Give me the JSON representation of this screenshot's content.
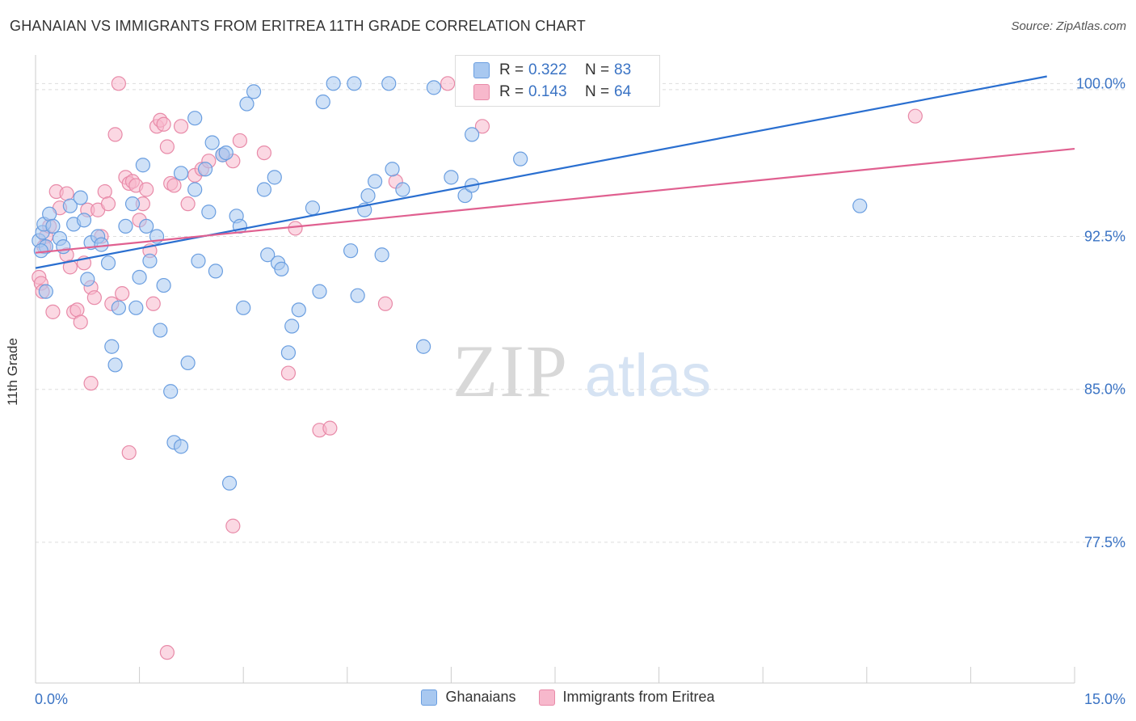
{
  "title": "GHANAIAN VS IMMIGRANTS FROM ERITREA 11TH GRADE CORRELATION CHART",
  "source": "Source: ZipAtlas.com",
  "watermark": {
    "zip": "ZIP",
    "atlas": "atlas"
  },
  "colors": {
    "blue_fill": "#a8c8f0",
    "blue_stroke": "#6a9ee0",
    "blue_line": "#2a6fd0",
    "pink_fill": "#f7b8cc",
    "pink_stroke": "#e88aa8",
    "pink_line": "#e06090",
    "axis_text": "#3a73c4",
    "grid": "#dddddd"
  },
  "legend": {
    "r_label": "R =",
    "n_label": "N =",
    "rows": [
      {
        "r": "0.322",
        "n": "83",
        "color": "#a8c8f0"
      },
      {
        "r": "0.143",
        "n": "64",
        "color": "#f7b8cc"
      }
    ]
  },
  "bottom_legend": [
    "Ghanaians",
    "Immigrants from Eritrea"
  ],
  "chart_data": {
    "type": "scatter",
    "title": "GHANAIAN VS IMMIGRANTS FROM ERITREA 11TH GRADE CORRELATION CHART",
    "xlabel": "",
    "ylabel": "11th Grade",
    "xlim": [
      0,
      15
    ],
    "ylim": [
      70.6,
      101.4
    ],
    "x_tick_labels": [
      "0.0%",
      "15.0%"
    ],
    "y_ticks": [
      77.5,
      85.0,
      92.5,
      100.0
    ],
    "y_tick_labels": [
      "77.5%",
      "85.0%",
      "92.5%",
      "100.0%"
    ],
    "grid": true,
    "legend_position": "top-center",
    "series": [
      {
        "name": "Ghanaians",
        "color": "#a8c8f0",
        "trend": {
          "x": [
            0,
            14.6
          ],
          "y": [
            90.95,
            100.35
          ]
        },
        "points": [
          [
            0.05,
            92.3
          ],
          [
            0.1,
            92.7
          ],
          [
            0.12,
            93.1
          ],
          [
            0.15,
            92.0
          ],
          [
            0.2,
            93.6
          ],
          [
            0.25,
            93.0
          ],
          [
            0.35,
            92.4
          ],
          [
            0.4,
            92.0
          ],
          [
            0.5,
            94.0
          ],
          [
            0.55,
            93.1
          ],
          [
            0.65,
            94.4
          ],
          [
            0.7,
            93.3
          ],
          [
            0.75,
            90.4
          ],
          [
            0.8,
            92.2
          ],
          [
            0.9,
            92.5
          ],
          [
            0.95,
            92.1
          ],
          [
            1.05,
            91.2
          ],
          [
            1.1,
            87.1
          ],
          [
            1.15,
            86.2
          ],
          [
            1.2,
            89.0
          ],
          [
            1.3,
            93.0
          ],
          [
            1.4,
            94.1
          ],
          [
            1.45,
            89.0
          ],
          [
            1.5,
            90.5
          ],
          [
            1.55,
            96.0
          ],
          [
            1.6,
            93.0
          ],
          [
            1.65,
            91.3
          ],
          [
            1.75,
            92.5
          ],
          [
            1.8,
            87.9
          ],
          [
            1.85,
            90.1
          ],
          [
            1.95,
            84.9
          ],
          [
            2.0,
            82.4
          ],
          [
            2.1,
            82.2
          ],
          [
            2.1,
            95.6
          ],
          [
            2.2,
            86.3
          ],
          [
            2.3,
            98.3
          ],
          [
            2.3,
            94.8
          ],
          [
            2.35,
            91.3
          ],
          [
            2.45,
            95.8
          ],
          [
            2.5,
            93.7
          ],
          [
            2.55,
            97.1
          ],
          [
            2.6,
            90.8
          ],
          [
            2.7,
            96.5
          ],
          [
            2.75,
            96.6
          ],
          [
            2.8,
            80.4
          ],
          [
            2.9,
            93.5
          ],
          [
            2.95,
            93.0
          ],
          [
            3.0,
            89.0
          ],
          [
            3.05,
            99.0
          ],
          [
            3.15,
            99.6
          ],
          [
            3.3,
            94.8
          ],
          [
            3.35,
            91.6
          ],
          [
            3.45,
            95.4
          ],
          [
            3.5,
            91.2
          ],
          [
            3.55,
            90.9
          ],
          [
            3.65,
            86.8
          ],
          [
            3.7,
            88.1
          ],
          [
            3.8,
            88.9
          ],
          [
            4.0,
            93.9
          ],
          [
            4.1,
            89.8
          ],
          [
            4.15,
            99.1
          ],
          [
            4.3,
            100.0
          ],
          [
            4.55,
            91.8
          ],
          [
            4.6,
            100.0
          ],
          [
            4.65,
            89.6
          ],
          [
            4.75,
            93.8
          ],
          [
            4.8,
            94.5
          ],
          [
            4.9,
            95.2
          ],
          [
            5.0,
            91.6
          ],
          [
            5.1,
            100.0
          ],
          [
            5.15,
            95.8
          ],
          [
            5.3,
            94.8
          ],
          [
            5.6,
            87.1
          ],
          [
            5.75,
            99.8
          ],
          [
            6.0,
            95.4
          ],
          [
            6.2,
            94.5
          ],
          [
            6.3,
            97.5
          ],
          [
            6.3,
            95.0
          ],
          [
            7.0,
            96.3
          ],
          [
            7.15,
            100.0
          ],
          [
            11.9,
            94.0
          ],
          [
            0.08,
            91.8
          ],
          [
            0.15,
            89.8
          ]
        ]
      },
      {
        "name": "Immigrants from Eritrea",
        "color": "#f7b8cc",
        "trend": {
          "x": [
            0,
            15
          ],
          "y": [
            91.7,
            96.8
          ]
        },
        "points": [
          [
            0.05,
            90.5
          ],
          [
            0.08,
            90.2
          ],
          [
            0.1,
            89.8
          ],
          [
            0.15,
            92.5
          ],
          [
            0.2,
            93.0
          ],
          [
            0.25,
            88.8
          ],
          [
            0.3,
            94.7
          ],
          [
            0.35,
            93.9
          ],
          [
            0.45,
            91.6
          ],
          [
            0.45,
            94.6
          ],
          [
            0.5,
            91.0
          ],
          [
            0.55,
            88.8
          ],
          [
            0.6,
            88.9
          ],
          [
            0.65,
            88.3
          ],
          [
            0.7,
            91.2
          ],
          [
            0.75,
            93.8
          ],
          [
            0.8,
            90.0
          ],
          [
            0.8,
            85.3
          ],
          [
            0.85,
            89.5
          ],
          [
            0.9,
            93.8
          ],
          [
            0.95,
            92.5
          ],
          [
            1.0,
            94.7
          ],
          [
            1.05,
            94.1
          ],
          [
            1.1,
            89.2
          ],
          [
            1.15,
            97.5
          ],
          [
            1.25,
            89.7
          ],
          [
            1.3,
            95.4
          ],
          [
            1.35,
            95.1
          ],
          [
            1.4,
            95.2
          ],
          [
            1.45,
            95.0
          ],
          [
            1.5,
            93.3
          ],
          [
            1.55,
            94.1
          ],
          [
            1.6,
            94.8
          ],
          [
            1.65,
            91.8
          ],
          [
            1.7,
            89.2
          ],
          [
            1.75,
            97.9
          ],
          [
            1.8,
            98.2
          ],
          [
            1.85,
            98.0
          ],
          [
            1.9,
            96.9
          ],
          [
            1.95,
            95.1
          ],
          [
            2.0,
            95.0
          ],
          [
            2.1,
            97.9
          ],
          [
            2.2,
            94.1
          ],
          [
            2.3,
            95.5
          ],
          [
            2.4,
            95.8
          ],
          [
            2.5,
            96.2
          ],
          [
            2.7,
            96.5
          ],
          [
            2.85,
            96.2
          ],
          [
            2.95,
            97.2
          ],
          [
            3.3,
            96.6
          ],
          [
            3.65,
            85.8
          ],
          [
            3.75,
            92.9
          ],
          [
            4.1,
            83.0
          ],
          [
            4.25,
            83.1
          ],
          [
            5.05,
            89.2
          ],
          [
            5.2,
            95.2
          ],
          [
            5.95,
            100.0
          ],
          [
            6.45,
            97.9
          ],
          [
            12.7,
            98.4
          ],
          [
            1.2,
            100.0
          ],
          [
            1.35,
            81.9
          ],
          [
            1.9,
            72.1
          ],
          [
            2.85,
            78.3
          ],
          [
            0.12,
            92.0
          ]
        ]
      }
    ]
  }
}
